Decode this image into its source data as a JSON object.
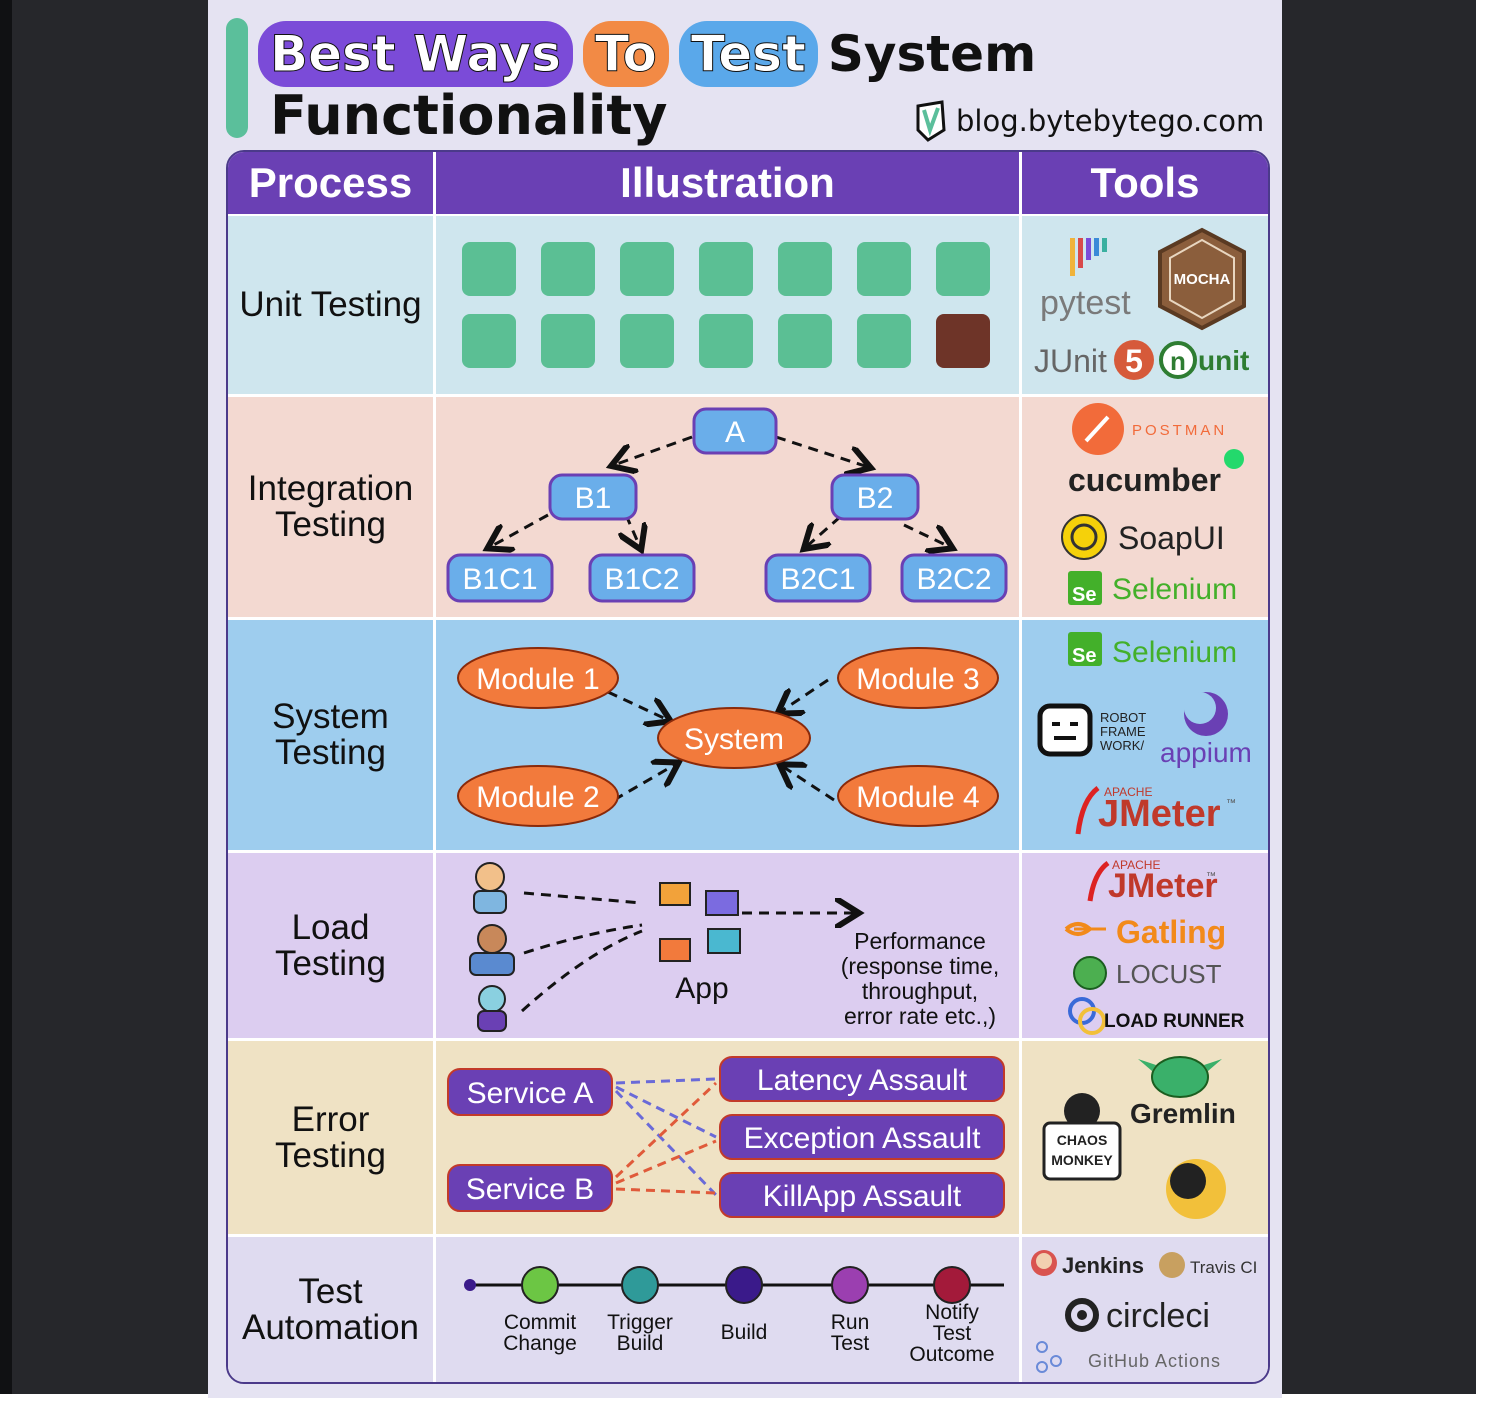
{
  "title": {
    "word1": "Best Ways",
    "word2": "To",
    "word3": "Test",
    "word4": "System",
    "line2": "Functionality",
    "blog": "blog.bytebytego.com"
  },
  "colors": {
    "header": "#6a40b4",
    "unit_bg": "#cfe6ee",
    "integration_bg": "#f3d9d1",
    "system_bg": "#9ecdee",
    "load_bg": "#dccdf0",
    "error_bg": "#efe2c4",
    "automation_bg": "#dfdbf0",
    "green_box": "#5bbf94",
    "failed_box": "#6e3428",
    "node_blue": "#6aaeea",
    "module_orange": "#f27a3c",
    "service_purple": "#6a40b4"
  },
  "headers": {
    "process": "Process",
    "illustration": "Illustration",
    "tools": "Tools"
  },
  "rows": {
    "unit": {
      "process": "Unit Testing",
      "tools": {
        "pytest": "pytest",
        "mocha": "MOCHA",
        "junit": "JUnit",
        "junit_num": "5",
        "nunit_n": "n",
        "nunit": "unit"
      }
    },
    "integration": {
      "process_line1": "Integration",
      "process_line2": "Testing",
      "nodes": {
        "a": "A",
        "b1": "B1",
        "b2": "B2",
        "b1c1": "B1C1",
        "b1c2": "B1C2",
        "b2c1": "B2C1",
        "b2c2": "B2C2"
      },
      "tools": {
        "postman": "POSTMAN",
        "cucumber": "cucumber",
        "soapui": "SoapUI",
        "selenium": "Selenium",
        "se": "Se"
      }
    },
    "system": {
      "process_line1": "System",
      "process_line2": "Testing",
      "nodes": {
        "m1": "Module 1",
        "m2": "Module 2",
        "m3": "Module 3",
        "m4": "Module 4",
        "sys": "System"
      },
      "tools": {
        "selenium": "Selenium",
        "se": "Se",
        "robot1": "ROBOT",
        "robot2": "FRAME",
        "robot3": "WORK/",
        "appium": "appium",
        "apache": "APACHE",
        "jmeter": "JMeter",
        "tm": "™"
      }
    },
    "load": {
      "process_line1": "Load",
      "process_line2": "Testing",
      "app": "App",
      "performance": [
        "Performance",
        "(response time,",
        "throughput,",
        "error rate etc.,)"
      ],
      "tools": {
        "apache": "APACHE",
        "jmeter": "JMeter",
        "tm": "™",
        "gatling": "Gatling",
        "locust": "LOCUST",
        "loadrunner": "LOAD RUNNER"
      }
    },
    "error": {
      "process_line1": "Error",
      "process_line2": "Testing",
      "services": {
        "a": "Service A",
        "b": "Service B"
      },
      "assaults": {
        "latency": "Latency Assault",
        "exception": "Exception Assault",
        "killapp": "KillApp Assault"
      },
      "tools": {
        "gremlin": "Gremlin",
        "chaos1": "CHAOS",
        "chaos2": "MONKEY"
      }
    },
    "automation": {
      "process_line1": "Test",
      "process_line2": "Automation",
      "steps": [
        {
          "lines": [
            "Commit",
            "Change"
          ],
          "color": "#6cc644"
        },
        {
          "lines": [
            "Trigger",
            "Build"
          ],
          "color": "#2f9a99"
        },
        {
          "lines": [
            "Build"
          ],
          "color": "#3a1a8a"
        },
        {
          "lines": [
            "Run",
            "Test"
          ],
          "color": "#9b3fb0"
        },
        {
          "lines": [
            "Notify",
            "Test",
            "Outcome"
          ],
          "color": "#a31a3a"
        }
      ],
      "tools": {
        "jenkins": "Jenkins",
        "travis": "Travis CI",
        "circleci": "circleci",
        "github": "GitHub Actions"
      }
    }
  }
}
